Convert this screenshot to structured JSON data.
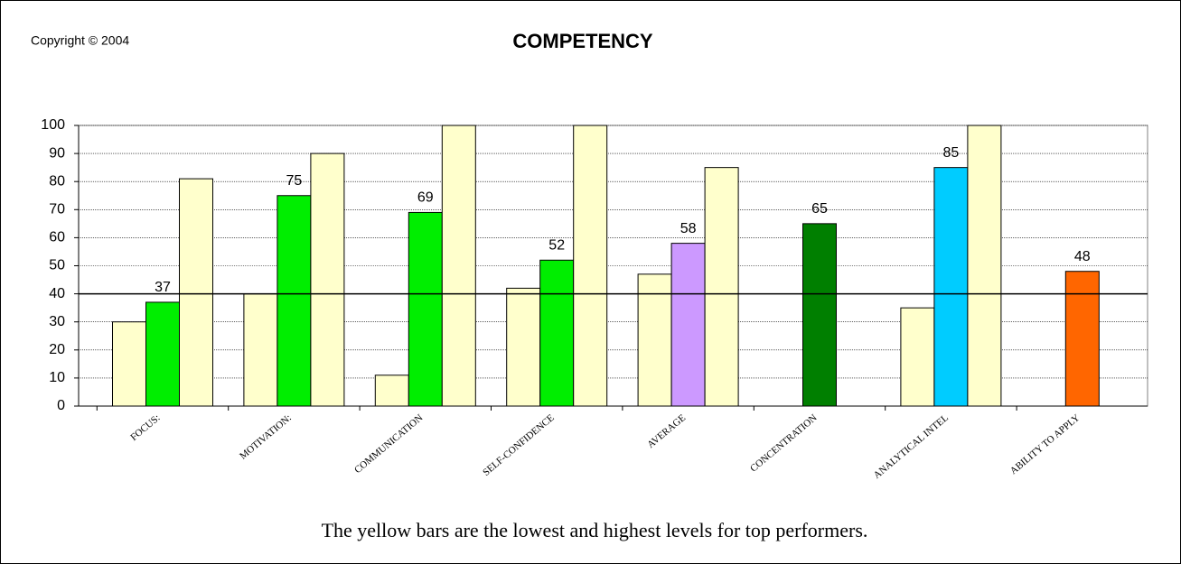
{
  "chart_data": {
    "type": "bar",
    "title": "COMPETENCY",
    "copyright": "Copyright © 2004",
    "caption": "The yellow bars are the lowest and highest levels for top performers.",
    "categories": [
      "FOCUS:",
      "MOTIVATION:",
      "COMMUNICATION",
      "SELF-CONFIDENCE",
      "AVERAGE",
      "CONCENTRATION",
      "ANALYTICAL INTEL",
      "ABILITY TO APPLY"
    ],
    "series": [
      {
        "color": "#ffffcc",
        "values": [
          30,
          40,
          11,
          42,
          47,
          null,
          35,
          null
        ]
      },
      {
        "colors": [
          "#00ee00",
          "#00ee00",
          "#00ee00",
          "#00ee00",
          "#cc99ff",
          "#007f00",
          "#00ccff",
          "#ff6600"
        ],
        "values": [
          37,
          75,
          69,
          52,
          58,
          65,
          85,
          48
        ],
        "labels": true
      },
      {
        "color": "#ffffcc",
        "values": [
          81,
          90,
          100,
          100,
          85,
          null,
          100,
          null
        ]
      }
    ],
    "reference_line": 40,
    "ylim": [
      0,
      100
    ],
    "yticks": [
      0,
      10,
      20,
      30,
      40,
      50,
      60,
      70,
      80,
      90,
      100
    ],
    "grid": true
  }
}
